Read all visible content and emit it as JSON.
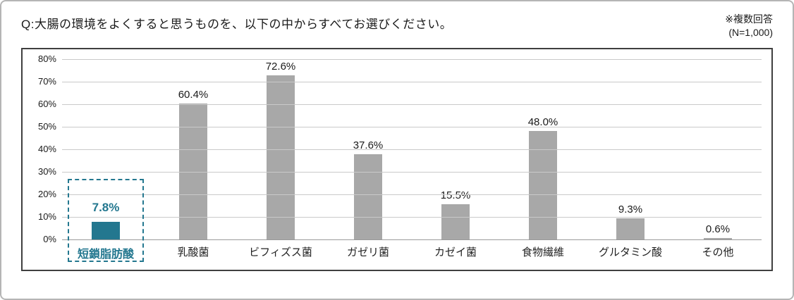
{
  "header": {
    "question": "Q:大腸の環境をよくすると思うものを、以下の中からすべてお選びください。",
    "note_line1": "※複数回答",
    "note_line2": "(N=1,000)"
  },
  "chart_data": {
    "type": "bar",
    "title": "",
    "xlabel": "",
    "ylabel": "",
    "categories": [
      "短鎖脂肪酸",
      "乳酸菌",
      "ビフィズス菌",
      "ガゼリ菌",
      "カゼイ菌",
      "食物繊維",
      "グルタミン酸",
      "その他"
    ],
    "values": [
      7.8,
      60.4,
      72.6,
      37.6,
      15.5,
      48.0,
      9.3,
      0.6
    ],
    "value_labels": [
      "7.8%",
      "60.4%",
      "72.6%",
      "37.6%",
      "15.5%",
      "48.0%",
      "9.3%",
      "0.6%"
    ],
    "ylim": [
      0,
      80
    ],
    "ytick_step": 10,
    "ytick_labels": [
      "80%",
      "70%",
      "60%",
      "50%",
      "40%",
      "30%",
      "20%",
      "10%",
      "0%"
    ],
    "grid": true,
    "legend": "none",
    "highlight_index": 0,
    "colors": {
      "bar": "#a8a8a8",
      "highlight_bar": "#23778f",
      "highlight_text": "#23778f",
      "highlight_border": "#23778f",
      "gridline": "#c9c9c9",
      "chart_border": "#3f3f3f"
    }
  }
}
